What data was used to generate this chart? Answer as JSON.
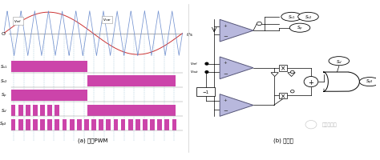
{
  "background_color": "#ffffff",
  "fig_width": 4.74,
  "fig_height": 2.01,
  "dpi": 100,
  "left_panel": {
    "title": "(a) 单相PWM",
    "sine_color": "#cc3333",
    "triangle_color": "#6688cc",
    "bar_color": "#cc44aa",
    "labels": [
      "S_{s1}",
      "S_{s2}",
      "S_{p}",
      "S_{d}",
      "S_{p2}"
    ],
    "label_display": [
      "$S_{s1}$",
      "$S_{s2}$",
      "$S_p$",
      "$S_d$",
      "$S_{p2}$"
    ]
  },
  "right_panel": {
    "title": "(b) 逻辑门",
    "triangle_fill": "#b8b8dd",
    "triangle_edge": "#555577"
  },
  "watermark": "光伏产业通"
}
